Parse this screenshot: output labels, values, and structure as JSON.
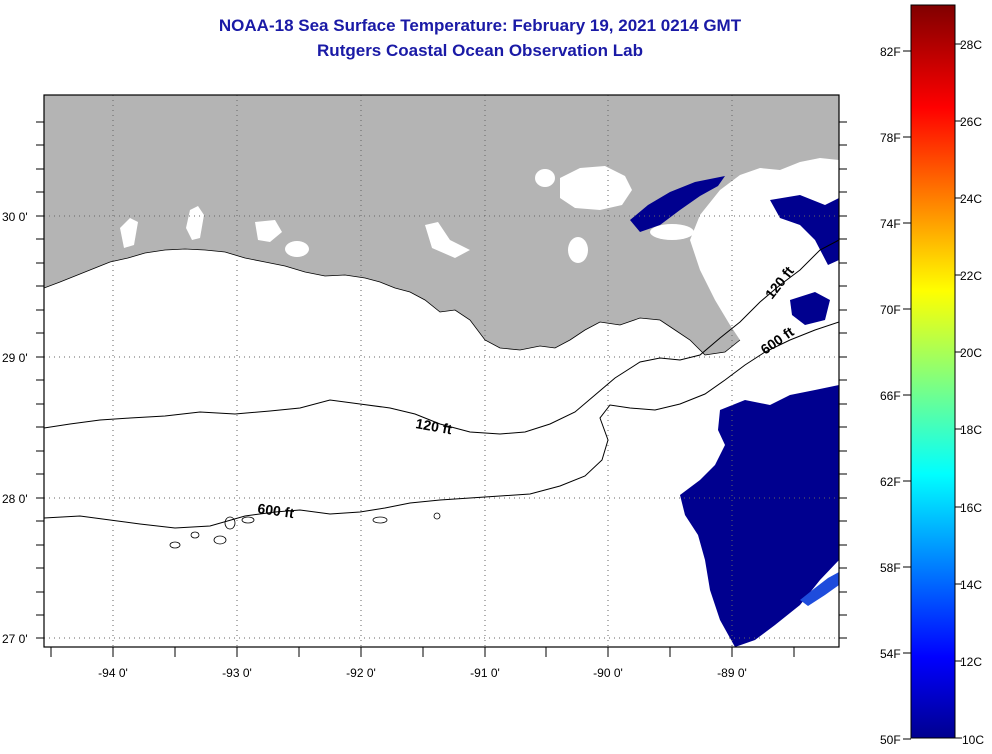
{
  "title": "NOAA-18 Sea Surface Temperature:  February 19, 2021 0214 GMT",
  "subtitle": "Rutgers Coastal Ocean Observation Lab",
  "map": {
    "lat_labels": [
      "30 0'",
      "29 0'",
      "28 0'",
      "27 0'"
    ],
    "lon_labels": [
      "-94 0'",
      "-93 0'",
      "-92 0'",
      "-91 0'",
      "-90 0'",
      "-89 0'"
    ],
    "contour_labels": {
      "c120_west": "120 ft",
      "c600_west": "600 ft",
      "c120_east": "120 ft",
      "c600_east": "600 ft"
    },
    "colors": {
      "land": "#b4b4b4",
      "water": "#ffffff",
      "sst_cold": "#00008f",
      "sst_mid": "#2050e0",
      "frame": "#000000",
      "grid": "#666666"
    }
  },
  "colorbar": {
    "f_labels": [
      "82F",
      "78F",
      "74F",
      "70F",
      "66F",
      "62F",
      "58F",
      "54F",
      "50F"
    ],
    "c_labels": [
      "28C",
      "26C",
      "24C",
      "22C",
      "20C",
      "18C",
      "16C",
      "14C",
      "12C",
      "10C"
    ],
    "range_c": [
      10,
      29
    ],
    "colormap": "jet"
  }
}
